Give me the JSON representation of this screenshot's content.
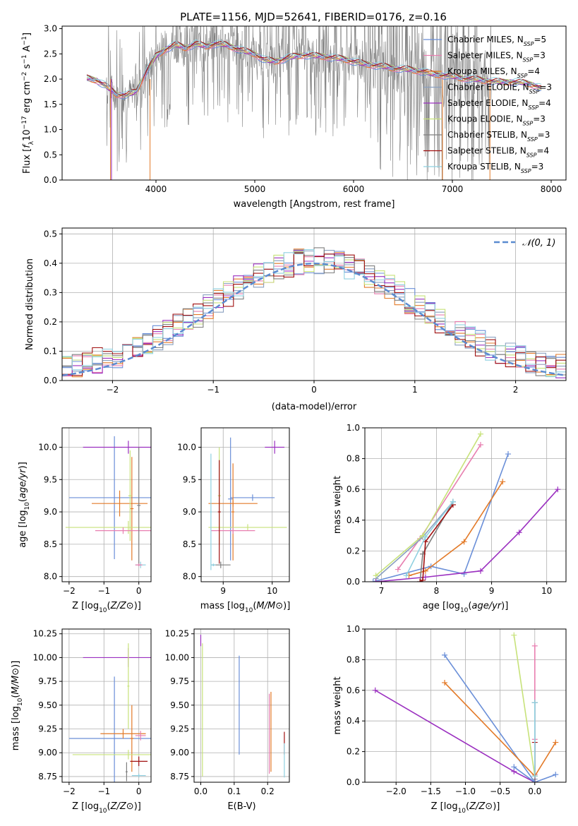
{
  "figure": {
    "title": "PLATE=1156, MJD=52641, FIBERID=0176, z=0.16",
    "colors": {
      "Chabrier MILES": "#6a8fd8",
      "Salpeter MILES": "#e87fb0",
      "Kroupa MILES": "#e37a28",
      "Chabrier ELODIE": "#8aa0c0",
      "Salpeter ELODIE": "#9b30c0",
      "Kroupa ELODIE": "#c7e27a",
      "Chabrier STELIB": "#7f7f7f",
      "Salpeter STELIB": "#a01010",
      "Kroupa STELIB": "#8fd0e0",
      "normal": "#5b8bd0",
      "spectrum": "#808080"
    }
  },
  "chart_data": [
    {
      "id": "spectrum",
      "type": "line",
      "xlabel": "wavelength [Angstrom, rest frame]",
      "ylabel": "Flux [f_λ10^-17 erg cm^-2 s^-1 A^-1]",
      "xlim": [
        3050,
        8150
      ],
      "ylim": [
        0,
        3.05
      ],
      "xticks": [
        4000,
        5000,
        6000,
        7000,
        8000
      ],
      "yticks": [
        0.0,
        0.5,
        1.0,
        1.5,
        2.0,
        2.5,
        3.0
      ],
      "grid": false,
      "legend_position": "top-right",
      "legend": [
        {
          "label": "Chabrier MILES, N",
          "sub": "SSP",
          "suffix": "=5"
        },
        {
          "label": "Salpeter MILES, N",
          "sub": "SSP",
          "suffix": "=3"
        },
        {
          "label": "Kroupa MILES, N",
          "sub": "SSP",
          "suffix": "=4"
        },
        {
          "label": "Chabrier ELODIE, N",
          "sub": "SSP",
          "suffix": "=3"
        },
        {
          "label": "Salpeter ELODIE, N",
          "sub": "SSP",
          "suffix": "=4"
        },
        {
          "label": "Kroupa ELODIE, N",
          "sub": "SSP",
          "suffix": "=3"
        },
        {
          "label": "Chabrier STELIB, N",
          "sub": "SSP",
          "suffix": "=3"
        },
        {
          "label": "Salpeter STELIB, N",
          "sub": "SSP",
          "suffix": "=4"
        },
        {
          "label": "Kroupa STELIB, N",
          "sub": "SSP",
          "suffix": "=3"
        }
      ],
      "continuum": [
        [
          3300,
          2.02
        ],
        [
          3400,
          1.98
        ],
        [
          3500,
          1.85
        ],
        [
          3600,
          1.7
        ],
        [
          3700,
          1.68
        ],
        [
          3800,
          1.75
        ],
        [
          3900,
          2.15
        ],
        [
          4000,
          2.45
        ],
        [
          4100,
          2.6
        ],
        [
          4200,
          2.68
        ],
        [
          4300,
          2.62
        ],
        [
          4400,
          2.7
        ],
        [
          4500,
          2.65
        ],
        [
          4600,
          2.7
        ],
        [
          4700,
          2.68
        ],
        [
          4800,
          2.62
        ],
        [
          4900,
          2.55
        ],
        [
          5000,
          2.5
        ],
        [
          5100,
          2.38
        ],
        [
          5200,
          2.35
        ],
        [
          5300,
          2.4
        ],
        [
          5400,
          2.45
        ],
        [
          5500,
          2.48
        ],
        [
          5600,
          2.46
        ],
        [
          5700,
          2.45
        ],
        [
          5800,
          2.42
        ],
        [
          5900,
          2.4
        ],
        [
          6000,
          2.35
        ],
        [
          6100,
          2.3
        ],
        [
          6200,
          2.28
        ],
        [
          6300,
          2.25
        ],
        [
          6400,
          2.22
        ],
        [
          6500,
          2.2
        ],
        [
          6600,
          2.18
        ],
        [
          6700,
          2.15
        ],
        [
          6800,
          2.1
        ],
        [
          6900,
          2.08
        ],
        [
          7000,
          2.05
        ],
        [
          7100,
          2.02
        ],
        [
          7200,
          2.0
        ],
        [
          7300,
          1.98
        ],
        [
          7400,
          1.96
        ],
        [
          7500,
          1.94
        ],
        [
          7600,
          1.95
        ],
        [
          7700,
          1.93
        ],
        [
          7800,
          1.9
        ],
        [
          7900,
          1.82
        ]
      ]
    },
    {
      "id": "residuals",
      "type": "line",
      "xlabel": "(data-model)/error",
      "ylabel": "Normed distribution",
      "xlim": [
        -2.5,
        2.5
      ],
      "ylim": [
        0,
        0.52
      ],
      "xticks": [
        -2,
        -1,
        0,
        1,
        2
      ],
      "yticks": [
        0.0,
        0.1,
        0.2,
        0.3,
        0.4,
        0.5
      ],
      "grid": true,
      "legend_position": "top-right",
      "legend": [
        "𝒩(0, 1)"
      ],
      "normal_mean": 0,
      "normal_sigma": 1
    },
    {
      "id": "age-vs-Z",
      "type": "scatter",
      "xlabel": "Z [log10(Z/Z⊙)]",
      "ylabel": "age  [log10(age/yr)]",
      "xlim": [
        -2.2,
        0.35
      ],
      "ylim": [
        7.92,
        10.3
      ],
      "xticks": [
        -2,
        -1,
        0
      ],
      "yticks": [
        8.0,
        8.5,
        9.0,
        9.5,
        10.0
      ],
      "grid": true,
      "points": [
        {
          "model": "Chabrier MILES",
          "x": -0.7,
          "y": 9.22,
          "xerr": 1.3,
          "yerr": 0.95
        },
        {
          "model": "Kroupa MILES",
          "x": -0.55,
          "y": 9.13,
          "xerr": 0.8,
          "yerr": 0.2
        },
        {
          "model": "Salpeter ELODIE",
          "x": -0.3,
          "y": 10.0,
          "xerr": 1.3,
          "yerr": 0.1
        },
        {
          "model": "Kroupa MILES",
          "x": -0.2,
          "y": 9.05,
          "xerr": 0.05,
          "yerr": 0.8
        },
        {
          "model": "Kroupa ELODIE",
          "x": -0.3,
          "y": 8.76,
          "xerr": 1.8,
          "yerr": 0.1
        },
        {
          "model": "Kroupa ELODIE",
          "x": -0.25,
          "y": 9.25,
          "xerr": 0.05,
          "yerr": 0.7
        },
        {
          "model": "Salpeter MILES",
          "x": -0.45,
          "y": 8.71,
          "xerr": 0.8,
          "yerr": 0.05
        },
        {
          "model": "Chabrier STELIB",
          "x": 0.0,
          "y": 9.1,
          "xerr": 0.05,
          "yerr": 0.9
        },
        {
          "model": "Kroupa STELIB",
          "x": 0.05,
          "y": 8.18,
          "xerr": 0.15,
          "yerr": 0.05
        },
        {
          "model": "Salpeter MILES",
          "x": 0.0,
          "y": 8.18,
          "xerr": 0.1,
          "yerr": 0.02
        }
      ]
    },
    {
      "id": "age-vs-mass",
      "type": "scatter",
      "xlabel": "mass [log10(M/M⊙)]",
      "ylabel": "",
      "xlim": [
        8.55,
        10.35
      ],
      "ylim": [
        7.92,
        10.3
      ],
      "xticks": [
        9,
        10
      ],
      "yticks": [
        8.0,
        8.5,
        9.0,
        9.5,
        10.0
      ],
      "grid": true,
      "points": [
        {
          "model": "Chabrier MILES",
          "x": 9.15,
          "y": 9.2,
          "xerr": 0.05,
          "yerr": 0.95
        },
        {
          "model": "Chabrier MILES",
          "x": 9.6,
          "y": 9.22,
          "xerr": 0.45,
          "yerr": 0.05
        },
        {
          "model": "Kroupa MILES",
          "x": 9.2,
          "y": 9.13,
          "xerr": 0.5,
          "yerr": 0.05
        },
        {
          "model": "Kroupa MILES",
          "x": 9.2,
          "y": 9.0,
          "xerr": 0.03,
          "yerr": 0.75
        },
        {
          "model": "Salpeter ELODIE",
          "x": 10.05,
          "y": 10.0,
          "xerr": 0.2,
          "yerr": 0.1
        },
        {
          "model": "Kroupa ELODIE",
          "x": 9.5,
          "y": 8.76,
          "xerr": 0.8,
          "yerr": 0.05
        },
        {
          "model": "Kroupa ELODIE",
          "x": 8.92,
          "y": 9.25,
          "xerr": 0.03,
          "yerr": 0.75
        },
        {
          "model": "Salpeter MILES",
          "x": 9.2,
          "y": 8.71,
          "xerr": 0.45,
          "yerr": 0.05
        },
        {
          "model": "Salpeter STELIB",
          "x": 8.92,
          "y": 9.0,
          "xerr": 0.03,
          "yerr": 0.8
        },
        {
          "model": "Chabrier STELIB",
          "x": 8.95,
          "y": 8.18,
          "xerr": 0.2,
          "yerr": 0.05
        },
        {
          "model": "Kroupa STELIB",
          "x": 8.75,
          "y": 9.0,
          "xerr": 0.02,
          "yerr": 0.9
        },
        {
          "model": "Kroupa STELIB",
          "x": 8.8,
          "y": 8.18,
          "xerr": 0.05,
          "yerr": 0.02
        }
      ]
    },
    {
      "id": "weight-vs-age",
      "type": "line",
      "xlabel": "age  [log10(age/yr)]",
      "ylabel": "mass weight",
      "xlim": [
        6.7,
        10.35
      ],
      "ylim": [
        0,
        1.0
      ],
      "xticks": [
        7,
        8,
        9,
        10
      ],
      "yticks": [
        0.0,
        0.2,
        0.4,
        0.6,
        0.8,
        1.0
      ],
      "grid": true,
      "series": [
        {
          "model": "Chabrier MILES",
          "x": [
            6.85,
            7.9,
            8.5,
            9.3
          ],
          "y": [
            0.0,
            0.1,
            0.05,
            0.83
          ]
        },
        {
          "model": "Salpeter MILES",
          "x": [
            7.3,
            7.7,
            8.8
          ],
          "y": [
            0.08,
            0.28,
            0.89
          ]
        },
        {
          "model": "Kroupa MILES",
          "x": [
            7.5,
            7.8,
            8.5,
            9.2
          ],
          "y": [
            0.04,
            0.07,
            0.26,
            0.65
          ]
        },
        {
          "model": "Chabrier ELODIE",
          "x": [
            6.9,
            7.75,
            8.3
          ],
          "y": [
            0.02,
            0.29,
            0.52
          ]
        },
        {
          "model": "Salpeter ELODIE",
          "x": [
            6.9,
            7.8,
            8.8,
            9.5,
            10.2
          ],
          "y": [
            0.0,
            0.03,
            0.07,
            0.32,
            0.6
          ]
        },
        {
          "model": "Kroupa ELODIE",
          "x": [
            6.9,
            7.75,
            8.8
          ],
          "y": [
            0.04,
            0.3,
            0.96
          ]
        },
        {
          "model": "Chabrier STELIB",
          "x": [
            7.7,
            7.75,
            8.3
          ],
          "y": [
            0.0,
            0.18,
            0.52
          ]
        },
        {
          "model": "Salpeter STELIB",
          "x": [
            7.7,
            7.75,
            7.8,
            8.3
          ],
          "y": [
            0.0,
            0.01,
            0.26,
            0.5
          ]
        },
        {
          "model": "Kroupa STELIB",
          "x": [
            7.45,
            7.8,
            8.3
          ],
          "y": [
            0.04,
            0.29,
            0.52
          ]
        }
      ]
    },
    {
      "id": "mass-vs-Z",
      "type": "scatter",
      "xlabel": "Z [log10(Z/Z⊙)]",
      "ylabel": "mass [log10(M/M⊙)]",
      "xlim": [
        -2.2,
        0.35
      ],
      "ylim": [
        8.69,
        10.3
      ],
      "xticks": [
        -2,
        -1,
        0
      ],
      "yticks": [
        8.75,
        9.0,
        9.25,
        9.5,
        9.75,
        10.0,
        10.25
      ],
      "grid": true,
      "points": [
        {
          "model": "Chabrier MILES",
          "x": -0.7,
          "y": 9.15,
          "xerr": 1.3,
          "yerr": 0.65
        },
        {
          "model": "Kroupa MILES",
          "x": -0.45,
          "y": 9.2,
          "xerr": 0.65,
          "yerr": 0.05
        },
        {
          "model": "Kroupa MILES",
          "x": -0.2,
          "y": 9.15,
          "xerr": 0.05,
          "yerr": 0.35
        },
        {
          "model": "Salpeter ELODIE",
          "x": -0.3,
          "y": 10.0,
          "xerr": 1.3,
          "yerr": 0.1
        },
        {
          "model": "Kroupa ELODIE",
          "x": -0.3,
          "y": 8.98,
          "xerr": 1.6,
          "yerr": 0.05
        },
        {
          "model": "Kroupa ELODIE",
          "x": -0.3,
          "y": 9.7,
          "xerr": 0.03,
          "yerr": 0.45
        },
        {
          "model": "Salpeter STELIB",
          "x": 0.0,
          "y": 8.91,
          "xerr": 0.25,
          "yerr": 0.05
        },
        {
          "model": "Salpeter MILES",
          "x": 0.05,
          "y": 9.18,
          "xerr": 0.15,
          "yerr": 0.05
        },
        {
          "model": "Kroupa STELIB",
          "x": 0.0,
          "y": 8.76,
          "xerr": 0.2,
          "yerr": 0.02
        },
        {
          "model": "Chabrier STELIB",
          "x": -0.35,
          "y": 8.8,
          "xerr": 0.03,
          "yerr": 0.1
        }
      ]
    },
    {
      "id": "mass-vs-ebv",
      "type": "scatter",
      "xlabel": "E(B-V)",
      "ylabel": "",
      "xlim": [
        -0.02,
        0.265
      ],
      "ylim": [
        8.69,
        10.3
      ],
      "xticks": [
        0.0,
        0.1,
        0.2
      ],
      "yticks": [
        8.75,
        9.0,
        9.25,
        9.5,
        9.75,
        10.0,
        10.25
      ],
      "grid": true,
      "points": [
        {
          "model": "Salpeter ELODIE",
          "x": 0.0,
          "y": 10.18,
          "xerr": 0.0,
          "yerr": 0.06
        },
        {
          "model": "Kroupa ELODIE",
          "x": 0.005,
          "y": 9.45,
          "xerr": 0.0,
          "yerr": 0.7
        },
        {
          "model": "Chabrier MILES",
          "x": 0.115,
          "y": 9.5,
          "xerr": 0.0,
          "yerr": 0.52
        },
        {
          "model": "Salpeter MILES",
          "x": 0.205,
          "y": 9.2,
          "xerr": 0.0,
          "yerr": 0.42
        },
        {
          "model": "Kroupa MILES",
          "x": 0.21,
          "y": 9.22,
          "xerr": 0.0,
          "yerr": 0.42
        },
        {
          "model": "Salpeter STELIB",
          "x": 0.25,
          "y": 9.1,
          "xerr": 0.0,
          "yerr": 0.12
        },
        {
          "model": "Kroupa STELIB",
          "x": 0.25,
          "y": 8.92,
          "xerr": 0.0,
          "yerr": 0.18
        }
      ]
    },
    {
      "id": "weight-vs-Z",
      "type": "line",
      "xlabel": "Z [log10(Z/Z⊙)]",
      "ylabel": "mass weight",
      "xlim": [
        -2.45,
        0.45
      ],
      "ylim": [
        0,
        1.0
      ],
      "xticks": [
        -2.0,
        -1.5,
        -1.0,
        -0.5,
        0.0
      ],
      "yticks": [
        0.0,
        0.2,
        0.4,
        0.6,
        0.8,
        1.0
      ],
      "grid": true,
      "series": [
        {
          "model": "Chabrier MILES",
          "x": [
            -1.3,
            0.0,
            0.3
          ],
          "y": [
            0.83,
            0.0,
            0.05
          ]
        },
        {
          "model": "Salpeter MILES",
          "x": [
            0.0,
            0.0,
            0.0
          ],
          "y": [
            0.89,
            0.28,
            0.05
          ]
        },
        {
          "model": "Kroupa MILES",
          "x": [
            -1.3,
            0.0,
            0.3
          ],
          "y": [
            0.65,
            0.04,
            0.26
          ]
        },
        {
          "model": "Chabrier ELODIE",
          "x": [
            0.0,
            0.0
          ],
          "y": [
            0.52,
            0.02
          ]
        },
        {
          "model": "Salpeter ELODIE",
          "x": [
            -2.3,
            -0.3,
            0.0
          ],
          "y": [
            0.6,
            0.07,
            0.0
          ]
        },
        {
          "model": "Kroupa ELODIE",
          "x": [
            -0.3,
            0.0
          ],
          "y": [
            0.96,
            0.04
          ]
        },
        {
          "model": "Chabrier STELIB",
          "x": [
            0.0,
            0.0
          ],
          "y": [
            0.52,
            0.0
          ]
        },
        {
          "model": "Salpeter STELIB",
          "x": [
            0.0,
            0.0
          ],
          "y": [
            0.26,
            0.0
          ]
        },
        {
          "model": "Kroupa STELIB",
          "x": [
            0.0,
            0.0
          ],
          "y": [
            0.52,
            0.04
          ]
        },
        {
          "model": "Chabrier MILES",
          "x": [
            -0.3,
            0.0
          ],
          "y": [
            0.1,
            0.0
          ]
        }
      ]
    }
  ]
}
